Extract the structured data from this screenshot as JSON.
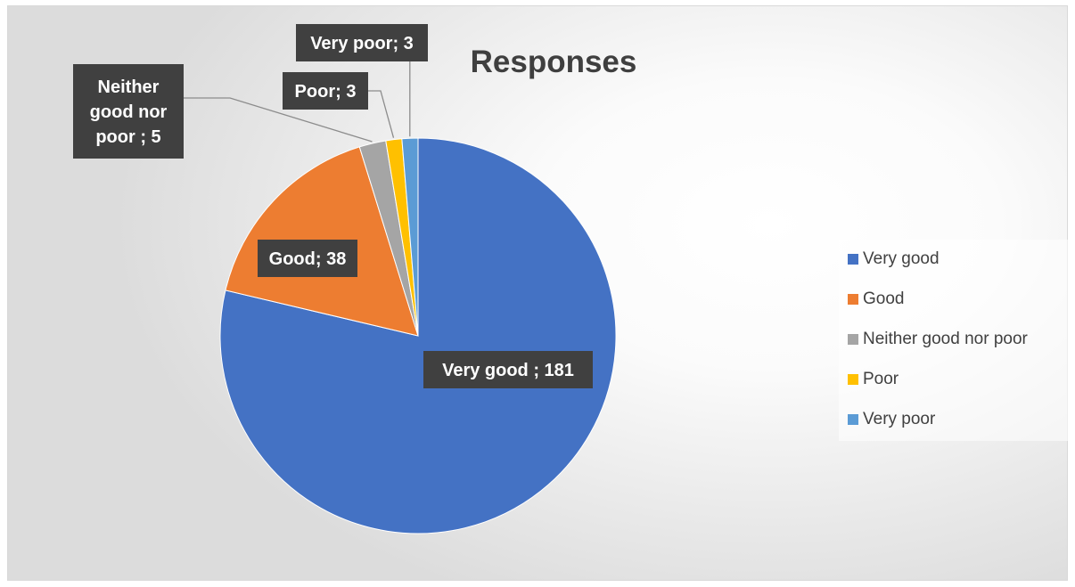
{
  "chart_data": {
    "type": "pie",
    "title": "Responses",
    "categories": [
      "Very good",
      "Good",
      "Neither good nor poor",
      "Poor",
      "Very poor"
    ],
    "values": [
      181,
      38,
      5,
      3,
      3
    ],
    "colors": [
      "#4472C4",
      "#ED7D31",
      "#A5A5A5",
      "#FFC000",
      "#5B9BD5"
    ],
    "data_labels": [
      [
        "Very good ; 181"
      ],
      [
        "Good; 38"
      ],
      [
        "Neither",
        "good nor",
        "poor ; 5"
      ],
      [
        "Poor; 3"
      ],
      [
        "Very poor; 3"
      ]
    ],
    "legend": {
      "position": "right",
      "items": [
        "Very good",
        "Good",
        "Neither good nor poor",
        "Poor",
        "Very poor"
      ]
    },
    "start_angle_deg": 0,
    "direction": "clockwise"
  }
}
